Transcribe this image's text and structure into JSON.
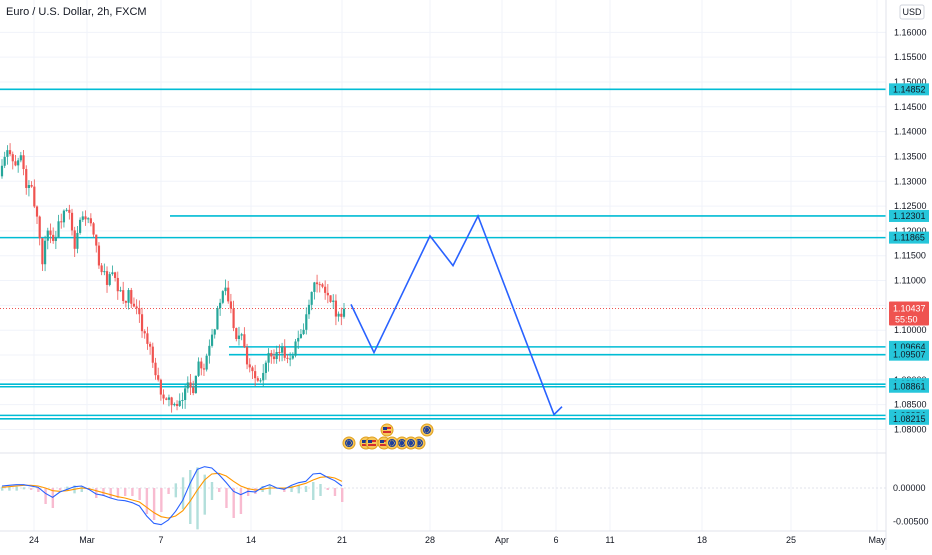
{
  "header": {
    "symbol": "Euro / U.S. Dollar, 2h, FXCM",
    "currency": "USD"
  },
  "chart_data": [
    {
      "type": "candlestick",
      "title": "Euro / U.S. Dollar, 2h, FXCM",
      "y_unit": "USD",
      "ylim": [
        1.0805,
        1.1645
      ],
      "y_ticks": [
        "1.16000",
        "1.15500",
        "1.15000",
        "1.14500",
        "1.14000",
        "1.13500",
        "1.13000",
        "1.12500",
        "1.12000",
        "1.11500",
        "1.11000",
        "1.10500",
        "1.10000",
        "1.09500",
        "1.09000",
        "1.08500",
        "1.08000"
      ],
      "x_ticks": [
        "24",
        "Mar",
        "7",
        "14",
        "21",
        "28",
        "Apr",
        "6",
        "11",
        "18",
        "25",
        "May"
      ],
      "grid": true,
      "horizontal_levels": [
        {
          "label": "1.14852",
          "value": 1.14852,
          "start": "full"
        },
        {
          "label": "1.12301",
          "value": 1.12301,
          "start": "mid"
        },
        {
          "label": "1.11865",
          "value": 1.11865,
          "start": "full"
        },
        {
          "label": "1.09664",
          "value": 1.09664,
          "start": "mid2"
        },
        {
          "label": "1.09507",
          "value": 1.09507,
          "start": "mid2"
        },
        {
          "label": "1.08913",
          "value": 1.08913,
          "start": "full"
        },
        {
          "label": "1.08861",
          "value": 1.08861,
          "start": "full"
        },
        {
          "label": "1.08284",
          "value": 1.08284,
          "start": "full"
        },
        {
          "label": "1.08215",
          "value": 1.08215,
          "start": "full"
        }
      ],
      "current_price": {
        "value": 1.10437,
        "label": "1.10437",
        "countdown": "55:50"
      },
      "forecast_path": [
        {
          "x": "Mar 22",
          "y": 1.1052
        },
        {
          "x": "Mar 24",
          "y": 1.0955
        },
        {
          "x": "Mar 28",
          "y": 1.119
        },
        {
          "x": "Mar 30",
          "y": 1.113
        },
        {
          "x": "Apr 1",
          "y": 1.123
        },
        {
          "x": "Apr 6",
          "y": 1.083
        },
        {
          "x": "Apr 6",
          "y": 1.0846
        }
      ],
      "price_series": [
        1.131,
        1.1345,
        1.1365,
        1.133,
        1.135,
        1.129,
        1.128,
        1.123,
        1.114,
        1.121,
        1.118,
        1.121,
        1.124,
        1.123,
        1.116,
        1.122,
        1.123,
        1.121,
        1.116,
        1.112,
        1.11,
        1.111,
        1.108,
        1.106,
        1.107,
        1.104,
        1.103,
        1.099,
        1.096,
        1.09,
        1.088,
        1.085,
        1.086,
        1.084,
        1.086,
        1.09,
        1.088,
        1.094,
        1.093,
        1.098,
        1.101,
        1.106,
        1.108,
        1.104,
        1.099,
        1.1,
        1.094,
        1.092,
        1.09,
        1.092,
        1.095,
        1.093,
        1.096,
        1.095,
        1.095,
        1.097,
        1.1,
        1.102,
        1.107,
        1.11,
        1.108,
        1.106,
        1.105,
        1.103,
        1.104
      ]
    },
    {
      "type": "line",
      "title": "",
      "ylim": [
        -0.006,
        0.0045
      ],
      "y_ticks": [
        "0.00000",
        "-0.00500"
      ],
      "macd": [
        0.0003,
        0.0004,
        0.0005,
        0.0005,
        0.0003,
        0.0001,
        -0.0008,
        -0.0014,
        -0.0006,
        -0.0002,
        0.0002,
        0.0003,
        -0.0002,
        -0.0009,
        -0.0011,
        -0.0015,
        -0.0018,
        -0.0019,
        -0.0022,
        -0.0027,
        -0.0042,
        -0.0053,
        -0.0055,
        -0.0048,
        -0.0035,
        -0.0018,
        0.0007,
        0.0028,
        0.0032,
        0.003,
        0.002,
        0.0008,
        -0.0005,
        -0.001,
        -0.0005,
        -0.0006,
        0.0001,
        0.0005,
        0.0,
        -0.0002,
        0.0004,
        0.0008,
        0.001,
        0.0021,
        0.0022,
        0.0016,
        0.0011,
        0.0003
      ],
      "signal": [
        0.0001,
        0.0002,
        0.0003,
        0.0004,
        0.0004,
        0.0003,
        0.0,
        -0.0004,
        -0.0005,
        -0.0004,
        -0.0002,
        0.0,
        -0.0001,
        -0.0004,
        -0.0007,
        -0.001,
        -0.0013,
        -0.0015,
        -0.0018,
        -0.0021,
        -0.0029,
        -0.0037,
        -0.0043,
        -0.0045,
        -0.0042,
        -0.0034,
        -0.002,
        -0.0003,
        0.0012,
        0.0021,
        0.0022,
        0.0018,
        0.001,
        0.0003,
        -0.0001,
        -0.0003,
        -0.0002,
        0.0,
        0.0,
        0.0,
        0.0001,
        0.0004,
        0.0007,
        0.0012,
        0.0016,
        0.0017,
        0.0015,
        0.001
      ]
    }
  ],
  "event_markers": [
    "usd",
    "eur",
    "eur",
    "usd",
    "usd",
    "eur",
    "eur",
    "usd",
    "eur",
    "eur"
  ]
}
